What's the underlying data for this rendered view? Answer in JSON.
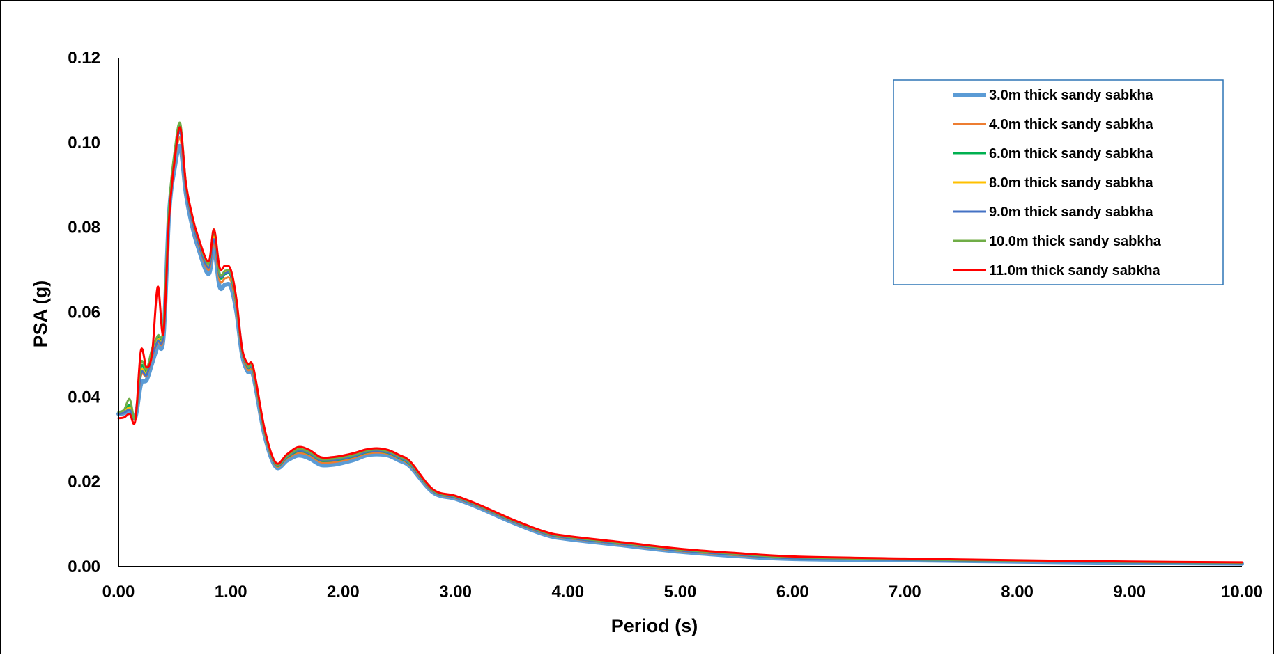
{
  "chart_data": {
    "type": "line",
    "title": "",
    "xlabel": "Period (s)",
    "ylabel": "PSA (g)",
    "xlim": [
      0,
      10
    ],
    "ylim": [
      0,
      0.12
    ],
    "xticks": [
      "0.00",
      "1.00",
      "2.00",
      "3.00",
      "4.00",
      "5.00",
      "6.00",
      "7.00",
      "8.00",
      "9.00",
      "10.00"
    ],
    "yticks": [
      "0.00",
      "0.02",
      "0.04",
      "0.06",
      "0.08",
      "0.10",
      "0.12"
    ],
    "grid": false,
    "legend_position": "top-right",
    "x": [
      0.0,
      0.05,
      0.1,
      0.15,
      0.2,
      0.25,
      0.3,
      0.35,
      0.4,
      0.45,
      0.5,
      0.55,
      0.6,
      0.65,
      0.7,
      0.8,
      0.85,
      0.9,
      0.95,
      1.0,
      1.05,
      1.1,
      1.15,
      1.2,
      1.3,
      1.4,
      1.5,
      1.6,
      1.7,
      1.8,
      1.9,
      2.0,
      2.1,
      2.2,
      2.3,
      2.4,
      2.5,
      2.6,
      2.8,
      3.0,
      3.2,
      3.5,
      3.8,
      4.0,
      4.5,
      5.0,
      5.5,
      6.0,
      7.0,
      8.0,
      9.0,
      10.0
    ],
    "series": [
      {
        "name": "3.0m thick sandy sabkha",
        "color": "#5B9BD5",
        "width": 6,
        "values": [
          0.036,
          0.0362,
          0.0368,
          0.0352,
          0.043,
          0.044,
          0.048,
          0.052,
          0.054,
          0.083,
          0.094,
          0.099,
          0.088,
          0.081,
          0.076,
          0.069,
          0.075,
          0.066,
          0.0665,
          0.066,
          0.06,
          0.05,
          0.046,
          0.045,
          0.031,
          0.0235,
          0.025,
          0.0262,
          0.0255,
          0.024,
          0.024,
          0.0245,
          0.0252,
          0.0262,
          0.0265,
          0.0262,
          0.025,
          0.0235,
          0.0175,
          0.016,
          0.014,
          0.0105,
          0.0075,
          0.0065,
          0.005,
          0.0035,
          0.0025,
          0.0018,
          0.0015,
          0.0012,
          0.0009,
          0.0007
        ]
      },
      {
        "name": "4.0m thick sandy sabkha",
        "color": "#ED7D31",
        "width": 3,
        "values": [
          0.036,
          0.0363,
          0.0372,
          0.0355,
          0.045,
          0.045,
          0.0495,
          0.053,
          0.0548,
          0.0835,
          0.0955,
          0.101,
          0.089,
          0.082,
          0.077,
          0.07,
          0.0765,
          0.0675,
          0.068,
          0.0675,
          0.061,
          0.0505,
          0.0465,
          0.0455,
          0.0315,
          0.0238,
          0.0255,
          0.0268,
          0.0262,
          0.0246,
          0.0246,
          0.025,
          0.0257,
          0.0266,
          0.0269,
          0.0266,
          0.0254,
          0.0238,
          0.0177,
          0.0162,
          0.0142,
          0.0107,
          0.0077,
          0.0067,
          0.0052,
          0.0037,
          0.0027,
          0.002,
          0.0016,
          0.0013,
          0.001,
          0.0008
        ]
      },
      {
        "name": "6.0m thick sandy sabkha",
        "color": "#00B050",
        "width": 3,
        "values": [
          0.0362,
          0.0366,
          0.038,
          0.035,
          0.047,
          0.046,
          0.051,
          0.054,
          0.056,
          0.084,
          0.0975,
          0.104,
          0.09,
          0.083,
          0.078,
          0.0712,
          0.0785,
          0.0685,
          0.069,
          0.0685,
          0.0617,
          0.0508,
          0.047,
          0.046,
          0.0318,
          0.024,
          0.0258,
          0.0272,
          0.0266,
          0.025,
          0.025,
          0.0254,
          0.026,
          0.0269,
          0.0272,
          0.0268,
          0.0256,
          0.024,
          0.0178,
          0.0163,
          0.0143,
          0.0108,
          0.0078,
          0.0068,
          0.0053,
          0.0038,
          0.0028,
          0.002,
          0.0016,
          0.0013,
          0.001,
          0.0008
        ]
      },
      {
        "name": "8.0m thick sandy sabkha",
        "color": "#FFC000",
        "width": 3,
        "values": [
          0.0361,
          0.0364,
          0.0375,
          0.0353,
          0.046,
          0.0455,
          0.05,
          0.0535,
          0.0555,
          0.0838,
          0.0965,
          0.103,
          0.0895,
          0.0825,
          0.0775,
          0.0708,
          0.0778,
          0.069,
          0.0695,
          0.069,
          0.062,
          0.051,
          0.0472,
          0.0462,
          0.032,
          0.0242,
          0.026,
          0.0275,
          0.0268,
          0.0252,
          0.0252,
          0.0256,
          0.0262,
          0.0271,
          0.0274,
          0.027,
          0.0258,
          0.0242,
          0.0179,
          0.0164,
          0.0144,
          0.0109,
          0.0079,
          0.0069,
          0.0054,
          0.0039,
          0.0029,
          0.0021,
          0.0017,
          0.0014,
          0.0011,
          0.0009
        ]
      },
      {
        "name": "9.0m thick sandy sabkha",
        "color": "#4472C4",
        "width": 3,
        "values": [
          0.036,
          0.0363,
          0.037,
          0.0352,
          0.0455,
          0.0452,
          0.0498,
          0.0532,
          0.0552,
          0.0836,
          0.096,
          0.1025,
          0.0893,
          0.0823,
          0.0773,
          0.0705,
          0.0772,
          0.0687,
          0.0692,
          0.0688,
          0.0618,
          0.0509,
          0.0471,
          0.0461,
          0.0319,
          0.0241,
          0.0259,
          0.0274,
          0.0267,
          0.0251,
          0.0251,
          0.0255,
          0.0261,
          0.027,
          0.0273,
          0.0269,
          0.0257,
          0.0241,
          0.0178,
          0.0163,
          0.0143,
          0.0108,
          0.0078,
          0.0068,
          0.0053,
          0.0038,
          0.0028,
          0.002,
          0.0016,
          0.0013,
          0.001,
          0.0008
        ]
      },
      {
        "name": "10.0m thick sandy sabkha",
        "color": "#70AD47",
        "width": 3,
        "values": [
          0.0365,
          0.037,
          0.0395,
          0.035,
          0.048,
          0.0465,
          0.0515,
          0.0545,
          0.0565,
          0.0845,
          0.098,
          0.1045,
          0.0902,
          0.0832,
          0.0782,
          0.0715,
          0.0795,
          0.0692,
          0.0698,
          0.0692,
          0.0622,
          0.0512,
          0.0474,
          0.0464,
          0.0321,
          0.0243,
          0.0261,
          0.0277,
          0.027,
          0.0254,
          0.0254,
          0.0258,
          0.0264,
          0.0273,
          0.0276,
          0.0272,
          0.026,
          0.0244,
          0.018,
          0.0165,
          0.0145,
          0.011,
          0.008,
          0.007,
          0.0055,
          0.004,
          0.003,
          0.0022,
          0.0017,
          0.0014,
          0.0011,
          0.0009
        ]
      },
      {
        "name": "11.0m thick sandy sabkha",
        "color": "#FF0000",
        "width": 3,
        "values": [
          0.035,
          0.0352,
          0.036,
          0.0345,
          0.051,
          0.047,
          0.0505,
          0.066,
          0.055,
          0.082,
          0.096,
          0.1035,
          0.0905,
          0.0835,
          0.0785,
          0.072,
          0.0795,
          0.0705,
          0.071,
          0.07,
          0.063,
          0.0515,
          0.0478,
          0.047,
          0.0325,
          0.0245,
          0.0265,
          0.0282,
          0.0275,
          0.0258,
          0.0258,
          0.0262,
          0.0268,
          0.0276,
          0.0279,
          0.0275,
          0.0263,
          0.0247,
          0.0182,
          0.0167,
          0.0147,
          0.0112,
          0.0082,
          0.0072,
          0.0057,
          0.0042,
          0.0032,
          0.0024,
          0.0019,
          0.0015,
          0.0012,
          0.001
        ]
      }
    ]
  }
}
